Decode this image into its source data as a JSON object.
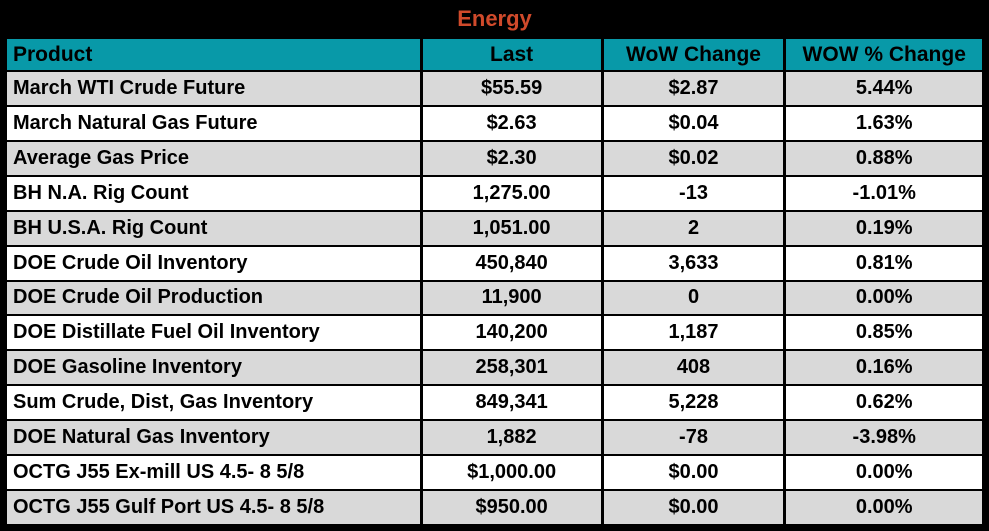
{
  "title": "Energy",
  "colors": {
    "border": "#000000",
    "header_bg": "#0899A8",
    "title_color": "#D04A2B",
    "row_alt_bg": "#D9D9D9",
    "row_bg": "#FFFFFF",
    "text": "#000000"
  },
  "chart_data": {
    "type": "table",
    "title": "Energy",
    "columns": [
      "Product",
      "Last",
      "WoW Change",
      "WOW % Change"
    ],
    "rows": [
      [
        "March WTI Crude Future",
        "$55.59",
        "$2.87",
        "5.44%"
      ],
      [
        "March Natural Gas Future",
        "$2.63",
        "$0.04",
        "1.63%"
      ],
      [
        "Average Gas Price",
        "$2.30",
        "$0.02",
        "0.88%"
      ],
      [
        "BH N.A. Rig Count",
        "1,275.00",
        "-13",
        "-1.01%"
      ],
      [
        "BH U.S.A. Rig Count",
        "1,051.00",
        "2",
        "0.19%"
      ],
      [
        "DOE Crude Oil Inventory",
        "450,840",
        "3,633",
        "0.81%"
      ],
      [
        "DOE Crude Oil Production",
        "11,900",
        "0",
        "0.00%"
      ],
      [
        "DOE Distillate Fuel Oil Inventory",
        "140,200",
        "1,187",
        "0.85%"
      ],
      [
        "DOE Gasoline Inventory",
        "258,301",
        "408",
        "0.16%"
      ],
      [
        "Sum Crude, Dist, Gas Inventory",
        "849,341",
        "5,228",
        "0.62%"
      ],
      [
        "DOE Natural Gas Inventory",
        "1,882",
        "-78",
        "-3.98%"
      ],
      [
        "OCTG J55 Ex-mill US 4.5- 8 5/8",
        "$1,000.00",
        "$0.00",
        "0.00%"
      ],
      [
        "OCTG J55 Gulf Port US 4.5- 8 5/8",
        "$950.00",
        "$0.00",
        "0.00%"
      ]
    ],
    "layout": {
      "row_shading": "alternating, first data row shaded gray",
      "product_align": "left",
      "value_align": "center",
      "grid": "black gridlines, heavy outer black border"
    }
  }
}
